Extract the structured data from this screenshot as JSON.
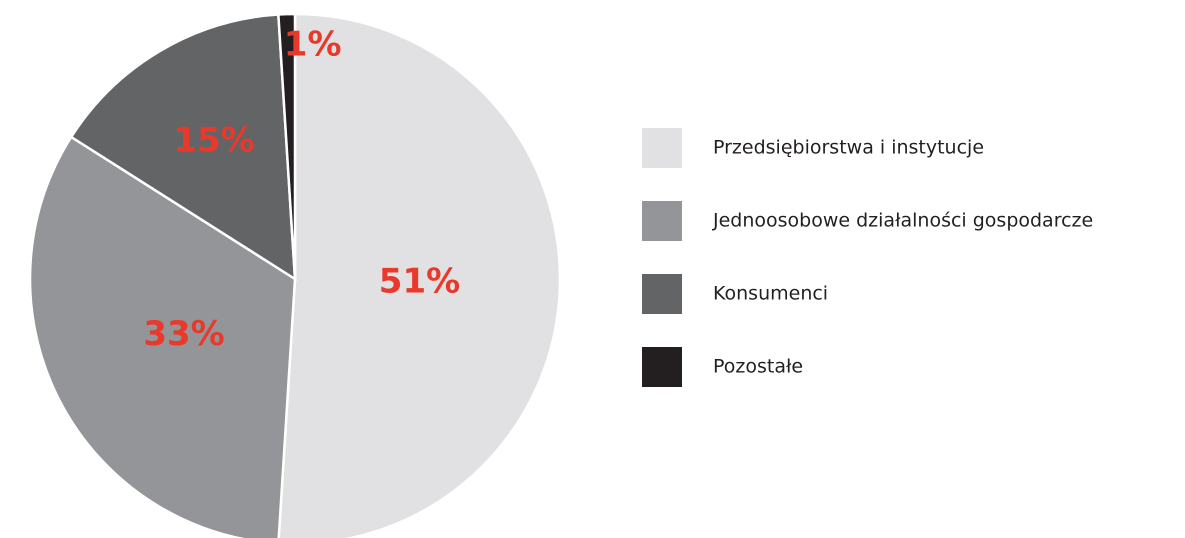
{
  "chart_data": {
    "type": "pie",
    "categories": [
      "Przedsiębiorstwa i instytucje",
      "Jednoosobowe działalności gospodarcze",
      "Konsumenci",
      "Pozostałe"
    ],
    "values": [
      51,
      33,
      15,
      1
    ],
    "value_labels": [
      "51%",
      "33%",
      "15%",
      "1%"
    ],
    "colors": [
      "#e1e1e3",
      "#939598",
      "#636466",
      "#231f20"
    ]
  }
}
